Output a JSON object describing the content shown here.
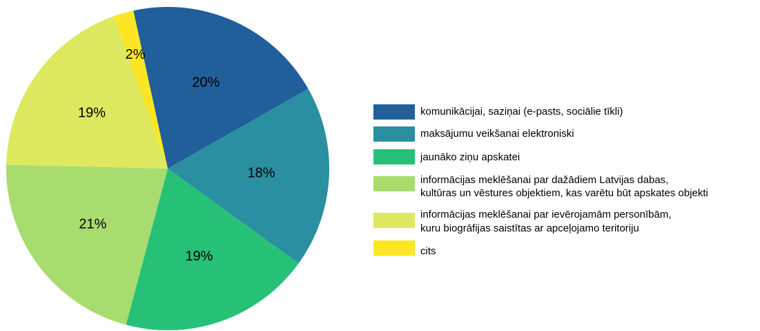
{
  "chart_data": {
    "type": "pie",
    "categories": [
      [
        "komunikācijai, saziņai (e-pasts, sociālie tīkli)"
      ],
      [
        "maksājumu veikšanai elektroniski"
      ],
      [
        "jaunāko ziņu apskatei"
      ],
      [
        "informācijas meklēšanai par dažādiem Latvijas dabas,",
        "kultūras un vēstures objektiem, kas varētu būt apskates objekti"
      ],
      [
        "informācijas meklēšanai par ievērojamām personībām,",
        "kuru biogrāfijas saistītas ar apceļojamo teritoriju"
      ],
      [
        "cits"
      ]
    ],
    "values": [
      20,
      18,
      19,
      21,
      19,
      2
    ],
    "value_labels": [
      "20%",
      "18%",
      "19%",
      "21%",
      "19%",
      "2%"
    ],
    "colors": [
      "#215f9a",
      "#2a8fa0",
      "#26c177",
      "#a8dc6e",
      "#dde95e",
      "#fde725"
    ]
  }
}
